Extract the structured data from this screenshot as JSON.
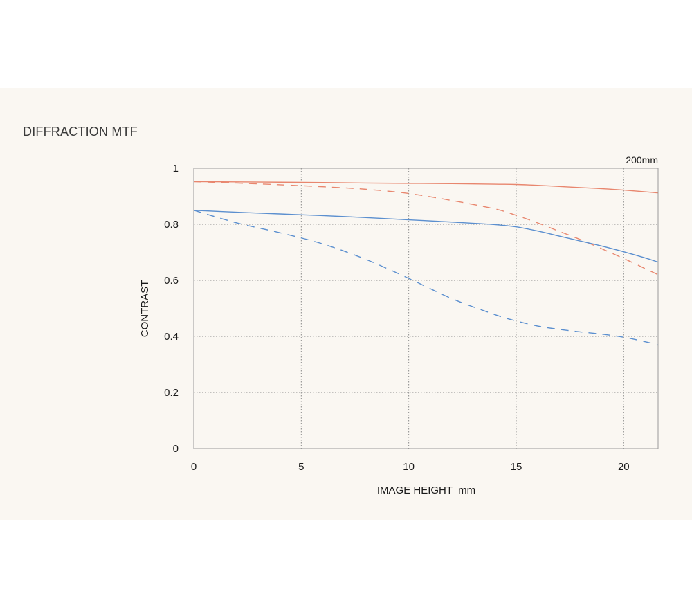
{
  "page": {
    "title": "DIFFRACTION MTF"
  },
  "chart_data": {
    "type": "line",
    "title": "DIFFRACTION MTF",
    "xlabel": "IMAGE HEIGHT  mm",
    "ylabel": "CONTRAST",
    "annotation": "200mm",
    "xlim": [
      0,
      21.6
    ],
    "ylim": [
      0,
      1
    ],
    "xticks": [
      0,
      5,
      10,
      15,
      20
    ],
    "yticks": [
      0,
      0.2,
      0.4,
      0.6,
      0.8,
      1
    ],
    "ytick_labels": [
      "0",
      "0.2",
      "0.4",
      "0.6",
      "0.8",
      "1"
    ],
    "grid": true,
    "legend": "none",
    "series": [
      {
        "style": "solid",
        "color": "#e8866e",
        "x": [
          0,
          2,
          4,
          6,
          8,
          10,
          12,
          14,
          15,
          16,
          17,
          18,
          19,
          20,
          21,
          21.6
        ],
        "y": [
          0.952,
          0.951,
          0.95,
          0.949,
          0.947,
          0.946,
          0.945,
          0.943,
          0.942,
          0.939,
          0.935,
          0.931,
          0.927,
          0.922,
          0.916,
          0.912
        ]
      },
      {
        "style": "dashed",
        "color": "#e8866e",
        "x": [
          0,
          2,
          4,
          6,
          8,
          10,
          12,
          14,
          15,
          16,
          17,
          18,
          19,
          20,
          21,
          21.6
        ],
        "y": [
          0.952,
          0.947,
          0.941,
          0.934,
          0.925,
          0.91,
          0.885,
          0.855,
          0.832,
          0.805,
          0.775,
          0.745,
          0.712,
          0.678,
          0.642,
          0.62
        ]
      },
      {
        "style": "solid",
        "color": "#5b8fcf",
        "x": [
          0,
          2,
          4,
          6,
          8,
          10,
          12,
          14,
          15,
          16,
          17,
          18,
          19,
          20,
          21,
          21.6
        ],
        "y": [
          0.85,
          0.843,
          0.837,
          0.831,
          0.824,
          0.816,
          0.808,
          0.799,
          0.791,
          0.776,
          0.758,
          0.74,
          0.722,
          0.702,
          0.68,
          0.665
        ]
      },
      {
        "style": "dashed",
        "color": "#5b8fcf",
        "x": [
          0,
          2,
          4,
          6,
          8,
          10,
          12,
          14,
          15,
          16,
          17,
          18,
          19,
          20,
          21,
          21.6
        ],
        "y": [
          0.85,
          0.805,
          0.77,
          0.73,
          0.675,
          0.607,
          0.535,
          0.478,
          0.455,
          0.437,
          0.425,
          0.416,
          0.408,
          0.397,
          0.381,
          0.369
        ]
      }
    ]
  }
}
